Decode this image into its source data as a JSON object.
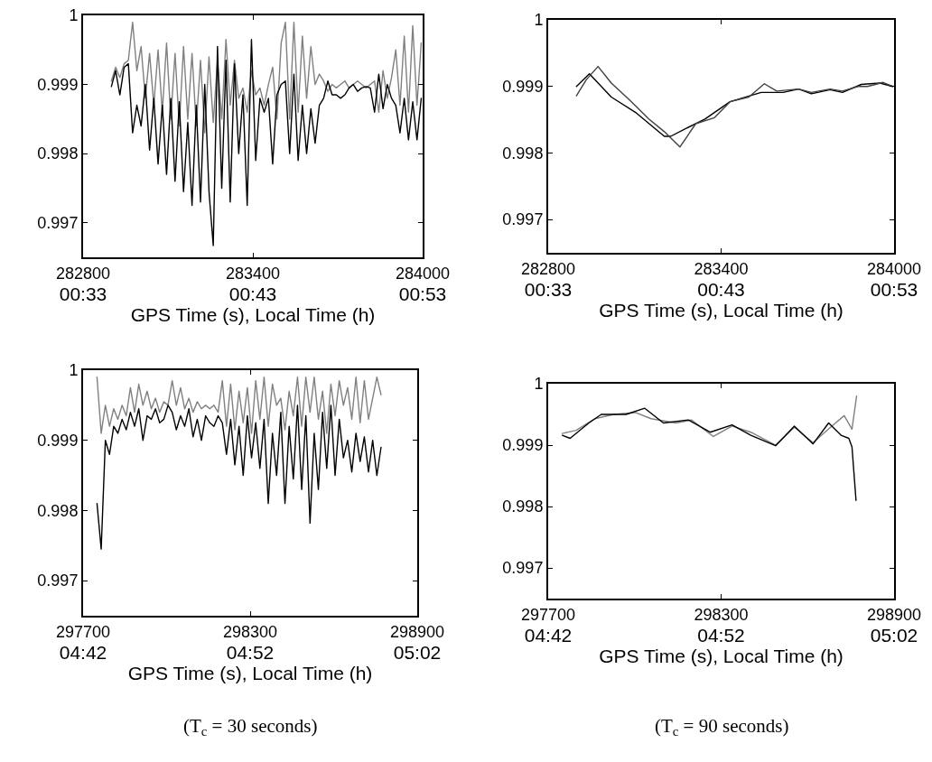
{
  "chart_data": [
    {
      "type": "line",
      "xlabel": "GPS Time (s), Local Time (h)",
      "xlim": [
        282800,
        284000
      ],
      "ylim": [
        0.9965,
        1.0
      ],
      "xticks": [
        282800,
        283400,
        284000
      ],
      "x2lim": [
        0.55,
        0.88333
      ],
      "x2ticks": [
        {
          "value": 0.55,
          "label": "00:33"
        },
        {
          "value": 0.71667,
          "label": "00:43"
        },
        {
          "value": 0.88333,
          "label": "00:53"
        }
      ],
      "yticks": [
        0.997,
        0.998,
        0.999,
        1
      ],
      "marker": "none",
      "series": [
        {
          "color": "#808080",
          "x": [
            282900,
            282915,
            282930,
            282945,
            282960,
            282975,
            282990,
            283005,
            283020,
            283035,
            283050,
            283065,
            283080,
            283095,
            283110,
            283125,
            283140,
            283155,
            283170,
            283185,
            283200,
            283215,
            283230,
            283245,
            283260,
            283275,
            283290,
            283305,
            283320,
            283335,
            283350,
            283365,
            283380,
            283395,
            283410,
            283425,
            283440,
            283455,
            283470,
            283485,
            283500,
            283515,
            283530,
            283545,
            283560,
            283575,
            283590,
            283605,
            283620,
            283635,
            283650,
            283665,
            283680,
            283695,
            283710,
            283725,
            283740,
            283755,
            283770,
            283785,
            283800,
            283815,
            283830,
            283845,
            283860,
            283875,
            283890,
            283905,
            283920,
            283935,
            283950,
            283965,
            283980,
            283995
          ],
          "values": [
            0.99905,
            0.99925,
            0.9991,
            0.9993,
            0.99935,
            0.9999,
            0.9992,
            0.99955,
            0.9988,
            0.99945,
            0.9987,
            0.9995,
            0.9986,
            0.9996,
            0.9985,
            0.99945,
            0.9984,
            0.99955,
            0.9985,
            0.99945,
            0.9984,
            0.99935,
            0.9983,
            0.9994,
            0.99845,
            0.99935,
            0.9985,
            0.99965,
            0.9987,
            0.99935,
            0.9988,
            0.99895,
            0.9986,
            0.9992,
            0.99885,
            0.99895,
            0.9987,
            0.999,
            0.99925,
            0.9985,
            0.9996,
            0.9999,
            0.9985,
            0.9999,
            0.9986,
            0.9997,
            0.9988,
            0.99955,
            0.999,
            0.99915,
            0.99905,
            0.9989,
            0.999,
            0.99895,
            0.999,
            0.99905,
            0.99895,
            0.999,
            0.99905,
            0.999,
            0.99895,
            0.999,
            0.99905,
            0.9986,
            0.9992,
            0.9988,
            0.9991,
            0.9995,
            0.9987,
            0.9997,
            0.9986,
            0.99985,
            0.9987,
            0.9996
          ]
        },
        {
          "color": "#000000",
          "x": [
            282900,
            282915,
            282930,
            282945,
            282960,
            282975,
            282990,
            283005,
            283020,
            283035,
            283050,
            283065,
            283080,
            283095,
            283110,
            283125,
            283140,
            283155,
            283170,
            283185,
            283200,
            283215,
            283230,
            283245,
            283260,
            283275,
            283290,
            283305,
            283320,
            283335,
            283350,
            283365,
            283380,
            283395,
            283410,
            283425,
            283440,
            283455,
            283470,
            283485,
            283500,
            283515,
            283530,
            283545,
            283560,
            283575,
            283590,
            283605,
            283620,
            283635,
            283650,
            283665,
            283680,
            283695,
            283710,
            283725,
            283740,
            283755,
            283770,
            283785,
            283800,
            283815,
            283830,
            283845,
            283860,
            283875,
            283890,
            283905,
            283920,
            283935,
            283950,
            283965,
            283980,
            283995
          ],
          "values": [
            0.99897,
            0.9992,
            0.99885,
            0.99925,
            0.9993,
            0.9983,
            0.9987,
            0.9984,
            0.999,
            0.99805,
            0.9988,
            0.99785,
            0.9987,
            0.9977,
            0.9988,
            0.9976,
            0.99875,
            0.99745,
            0.99845,
            0.99725,
            0.9987,
            0.9973,
            0.999,
            0.99745,
            0.99667,
            0.99955,
            0.9975,
            0.99935,
            0.9973,
            0.9993,
            0.998,
            0.99885,
            0.99725,
            0.99965,
            0.9979,
            0.9988,
            0.9986,
            0.9988,
            0.99785,
            0.99885,
            0.999,
            0.99905,
            0.998,
            0.99915,
            0.9979,
            0.9987,
            0.998,
            0.99865,
            0.99815,
            0.9987,
            0.9988,
            0.99905,
            0.99885,
            0.99885,
            0.9988,
            0.99885,
            0.99895,
            0.999,
            0.9989,
            0.99895,
            0.99897,
            0.99895,
            0.9986,
            0.99915,
            0.99865,
            0.999,
            0.9988,
            0.9987,
            0.9983,
            0.9988,
            0.9982,
            0.99875,
            0.9982,
            0.9988
          ]
        }
      ]
    },
    {
      "type": "line",
      "xlabel": "GPS Time (s), Local Time (h)",
      "xlim": [
        282800,
        284000
      ],
      "ylim": [
        0.9965,
        1.0
      ],
      "xticks": [
        282800,
        283400,
        284000
      ],
      "x2lim": [
        0.55,
        0.88333
      ],
      "x2ticks": [
        {
          "value": 0.55,
          "label": "00:33"
        },
        {
          "value": 0.71667,
          "label": "00:43"
        },
        {
          "value": 0.88333,
          "label": "00:53"
        }
      ],
      "yticks": [
        0.997,
        0.998,
        0.999,
        1
      ],
      "marker": "none",
      "series": [
        {
          "color": "#000000",
          "x": [
            282898,
            282943,
            283019,
            283106,
            283203,
            283225,
            283279,
            283344,
            283431,
            283539,
            283615,
            283669,
            283713,
            283778,
            283821,
            283886,
            283951,
            283995
          ],
          "values": [
            0.999,
            0.99919,
            0.99884,
            0.9986,
            0.99825,
            0.99825,
            0.99837,
            0.99851,
            0.99877,
            0.99891,
            0.99891,
            0.99896,
            0.99889,
            0.99895,
            0.99891,
            0.99903,
            0.99905,
            0.999
          ]
        },
        {
          "color": "#404040",
          "x": [
            282898,
            282932,
            282973,
            283019,
            283084,
            283149,
            283203,
            283257,
            283312,
            283377,
            283431,
            283496,
            283550,
            283593,
            283669,
            283713,
            283778,
            283821,
            283875,
            283908,
            283962,
            283995
          ],
          "values": [
            0.99886,
            0.9991,
            0.9993,
            0.99905,
            0.99879,
            0.99851,
            0.99832,
            0.99809,
            0.99844,
            0.99853,
            0.99877,
            0.99884,
            0.99904,
            0.99893,
            0.99896,
            0.99891,
            0.99896,
            0.99893,
            0.999,
            0.999,
            0.99906,
            0.999
          ]
        }
      ]
    },
    {
      "type": "line",
      "xlabel": "GPS Time (s), Local Time (h)",
      "xlim": [
        297700,
        298900
      ],
      "ylim": [
        0.9965,
        1.0
      ],
      "xticks": [
        297700,
        298300,
        298900
      ],
      "x2lim": [
        4.7,
        5.03333
      ],
      "x2ticks": [
        {
          "value": 4.7,
          "label": "04:42"
        },
        {
          "value": 4.86667,
          "label": "04:52"
        },
        {
          "value": 5.03333,
          "label": "05:02"
        }
      ],
      "yticks": [
        0.997,
        0.998,
        0.999,
        1
      ],
      "marker": "none",
      "annotations": [
        "(T$_{c}$ = 30 seconds)"
      ],
      "series": [
        {
          "color": "#808080",
          "x": [
            297750,
            297765,
            297780,
            297795,
            297810,
            297825,
            297840,
            297855,
            297870,
            297885,
            297900,
            297915,
            297930,
            297945,
            297960,
            297975,
            297990,
            298005,
            298020,
            298035,
            298050,
            298065,
            298080,
            298095,
            298110,
            298125,
            298140,
            298155,
            298170,
            298185,
            298200,
            298215,
            298230,
            298245,
            298260,
            298275,
            298290,
            298305,
            298320,
            298335,
            298350,
            298365,
            298380,
            298395,
            298410,
            298425,
            298440,
            298455,
            298470,
            298485,
            298500,
            298515,
            298530,
            298545,
            298560,
            298575,
            298590,
            298605,
            298620,
            298635,
            298650,
            298665,
            298680,
            298695,
            298710,
            298725,
            298740,
            298755,
            298770
          ],
          "values": [
            0.9999,
            0.9991,
            0.9995,
            0.9992,
            0.99945,
            0.9993,
            0.9995,
            0.99935,
            0.99975,
            0.9994,
            0.9998,
            0.9995,
            0.9997,
            0.99945,
            0.9996,
            0.9994,
            0.99955,
            0.9995,
            0.99985,
            0.9995,
            0.99975,
            0.99945,
            0.9996,
            0.9994,
            0.99955,
            0.99945,
            0.9995,
            0.99945,
            0.9995,
            0.9994,
            0.99985,
            0.9992,
            0.9998,
            0.99915,
            0.9997,
            0.99925,
            0.99975,
            0.9991,
            0.99985,
            0.9993,
            0.9999,
            0.9992,
            0.9998,
            0.9995,
            0.9996,
            0.99915,
            0.9997,
            0.99935,
            0.9999,
            0.9992,
            0.9999,
            0.9994,
            0.9999,
            0.9993,
            0.9997,
            0.9991,
            0.9998,
            0.99935,
            0.99985,
            0.9995,
            0.99975,
            0.9993,
            0.9999,
            0.99925,
            0.99985,
            0.9993,
            0.9996,
            0.9999,
            0.99965
          ]
        },
        {
          "color": "#000000",
          "x": [
            297750,
            297765,
            297780,
            297795,
            297810,
            297825,
            297840,
            297855,
            297870,
            297885,
            297900,
            297915,
            297930,
            297945,
            297960,
            297975,
            297990,
            298005,
            298020,
            298035,
            298050,
            298065,
            298080,
            298095,
            298110,
            298125,
            298140,
            298155,
            298170,
            298185,
            298200,
            298215,
            298230,
            298245,
            298260,
            298275,
            298290,
            298305,
            298320,
            298335,
            298350,
            298365,
            298380,
            298395,
            298410,
            298425,
            298440,
            298455,
            298470,
            298485,
            298500,
            298515,
            298530,
            298545,
            298560,
            298575,
            298590,
            298605,
            298620,
            298635,
            298650,
            298665,
            298680,
            298695,
            298710,
            298725,
            298740,
            298755,
            298770
          ],
          "values": [
            0.9981,
            0.99745,
            0.999,
            0.9988,
            0.9992,
            0.9991,
            0.9993,
            0.99915,
            0.9994,
            0.9992,
            0.99945,
            0.999,
            0.99935,
            0.9993,
            0.99945,
            0.99925,
            0.9993,
            0.9995,
            0.9994,
            0.99915,
            0.99935,
            0.9992,
            0.99945,
            0.99905,
            0.9993,
            0.999,
            0.99935,
            0.99925,
            0.9992,
            0.99935,
            0.99925,
            0.9988,
            0.9993,
            0.99865,
            0.9992,
            0.9985,
            0.99935,
            0.99875,
            0.99925,
            0.9986,
            0.9993,
            0.9981,
            0.9991,
            0.9985,
            0.9994,
            0.9981,
            0.9992,
            0.99845,
            0.9995,
            0.9983,
            0.99935,
            0.99782,
            0.9991,
            0.9983,
            0.9994,
            0.9986,
            0.9995,
            0.9985,
            0.9993,
            0.99875,
            0.999,
            0.99855,
            0.9991,
            0.9987,
            0.99905,
            0.99855,
            0.999,
            0.9985,
            0.9989
          ]
        }
      ]
    },
    {
      "type": "line",
      "xlabel": "GPS Time (s), Local Time (h)",
      "xlim": [
        297700,
        298900
      ],
      "ylim": [
        0.9965,
        1.0
      ],
      "xticks": [
        297700,
        298300,
        298900
      ],
      "x2lim": [
        4.7,
        5.03333
      ],
      "x2ticks": [
        {
          "value": 4.7,
          "label": "04:42"
        },
        {
          "value": 4.86667,
          "label": "04:52"
        },
        {
          "value": 5.03333,
          "label": "05:02"
        }
      ],
      "yticks": [
        0.997,
        0.998,
        0.999,
        1
      ],
      "marker": "none",
      "annotations": [
        "(T$_{c}$ = 90 seconds)"
      ],
      "series": [
        {
          "color": "#808080",
          "x": [
            297749,
            297797,
            297862,
            297927,
            298003,
            298057,
            298143,
            298197,
            298273,
            298338,
            298403,
            298489,
            298554,
            298619,
            298684,
            298727,
            298754,
            298770
          ],
          "values": [
            0.99919,
            0.99924,
            0.99943,
            0.9995,
            0.99953,
            0.99943,
            0.99936,
            0.99941,
            0.99914,
            0.99931,
            0.99921,
            0.999,
            0.99929,
            0.99904,
            0.99931,
            0.99948,
            0.99926,
            0.9998
          ]
        },
        {
          "color": "#000000",
          "x": [
            297749,
            297776,
            297841,
            297884,
            297970,
            298035,
            298100,
            298186,
            298262,
            298338,
            298403,
            298489,
            298554,
            298619,
            298673,
            298716,
            298743,
            298754,
            298768
          ],
          "values": [
            0.99916,
            0.99911,
            0.99936,
            0.9995,
            0.9995,
            0.9996,
            0.99936,
            0.99941,
            0.99921,
            0.99933,
            0.99916,
            0.99899,
            0.99931,
            0.99902,
            0.99936,
            0.99916,
            0.99911,
            0.99897,
            0.9981
          ]
        }
      ]
    }
  ]
}
